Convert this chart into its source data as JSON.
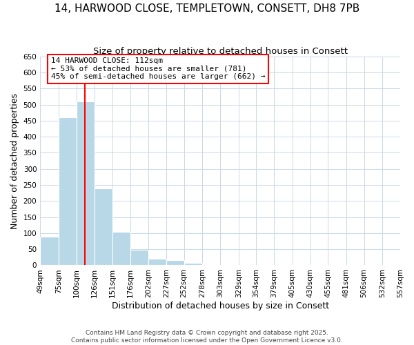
{
  "title": "14, HARWOOD CLOSE, TEMPLETOWN, CONSETT, DH8 7PB",
  "subtitle": "Size of property relative to detached houses in Consett",
  "xlabel": "Distribution of detached houses by size in Consett",
  "ylabel": "Number of detached properties",
  "bar_values": [
    90,
    460,
    510,
    240,
    105,
    48,
    20,
    15,
    8,
    2,
    0,
    0,
    0,
    0,
    0,
    0,
    0,
    0,
    0,
    0
  ],
  "bar_edges": [
    49,
    75,
    100,
    126,
    151,
    176,
    202,
    227,
    252,
    278,
    303,
    329,
    354,
    379,
    405,
    430,
    455,
    481,
    506,
    532,
    557
  ],
  "tick_labels": [
    "49sqm",
    "75sqm",
    "100sqm",
    "126sqm",
    "151sqm",
    "176sqm",
    "202sqm",
    "227sqm",
    "252sqm",
    "278sqm",
    "303sqm",
    "329sqm",
    "354sqm",
    "379sqm",
    "405sqm",
    "430sqm",
    "455sqm",
    "481sqm",
    "506sqm",
    "532sqm",
    "557sqm"
  ],
  "bar_color": "#b8d8e8",
  "red_line_x": 112,
  "ylim": [
    0,
    650
  ],
  "yticks": [
    0,
    50,
    100,
    150,
    200,
    250,
    300,
    350,
    400,
    450,
    500,
    550,
    600,
    650
  ],
  "annotation_line1": "14 HARWOOD CLOSE: 112sqm",
  "annotation_line2": "← 53% of detached houses are smaller (781)",
  "annotation_line3": "45% of semi-detached houses are larger (662) →",
  "footer_line1": "Contains HM Land Registry data © Crown copyright and database right 2025.",
  "footer_line2": "Contains public sector information licensed under the Open Government Licence v3.0.",
  "background_color": "#ffffff",
  "grid_color": "#c8d8e8",
  "title_fontsize": 11,
  "subtitle_fontsize": 9.5,
  "axis_label_fontsize": 9,
  "tick_fontsize": 7.5,
  "annotation_fontsize": 8,
  "footer_fontsize": 6.5
}
